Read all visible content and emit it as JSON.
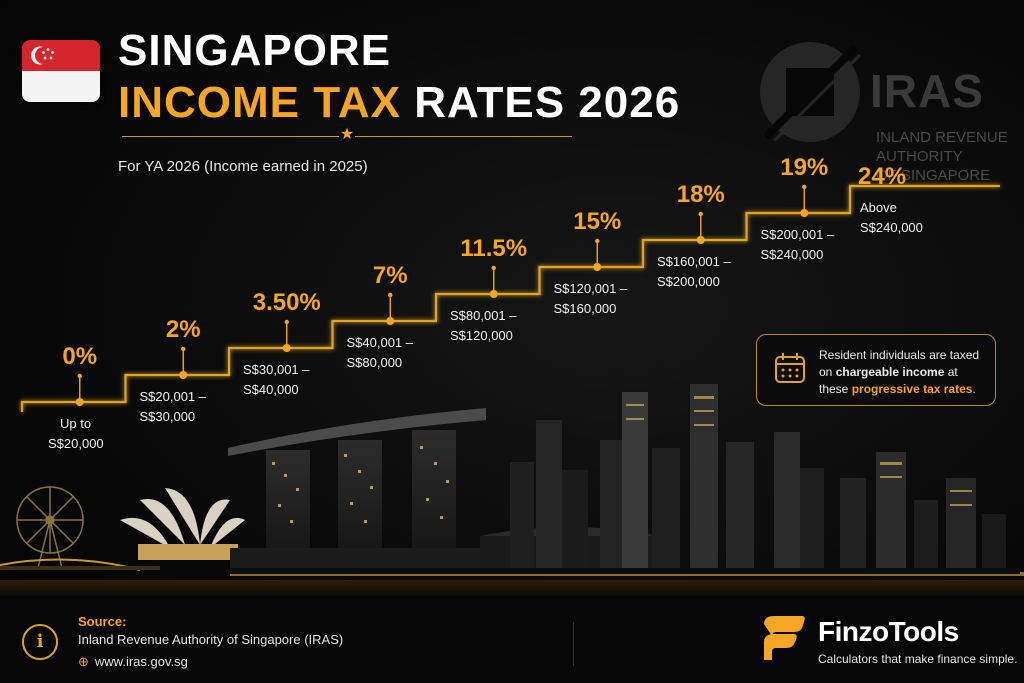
{
  "header": {
    "title_line1": "SINGAPORE",
    "title_line2_accent": "INCOME TAX",
    "title_line2_rest": "RATES 2026",
    "subtitle": "For YA 2026 (Income earned in 2025)"
  },
  "iras": {
    "name": "IRAS",
    "line1": "INLAND REVENUE",
    "line2": "AUTHORITY",
    "line3": "OF SINGAPORE"
  },
  "chart_data": {
    "type": "bar",
    "categories": [
      "Up to S$20,000",
      "S$20,001 – S$30,000",
      "S$30,001 – S$40,000",
      "S$40,001 – S$80,000",
      "S$80,001 – S$120,000",
      "S$120,001 – S$160,000",
      "S$160,001 – S$200,000",
      "S$200,001 – S$240,000",
      "Above S$240,000"
    ],
    "category_lines": [
      [
        "Up to",
        "S$20,000"
      ],
      [
        "S$20,001 –",
        "S$30,000"
      ],
      [
        "S$30,001 –",
        "S$40,000"
      ],
      [
        "S$40,001 –",
        "S$80,000"
      ],
      [
        "S$80,001 –",
        "S$120,000"
      ],
      [
        "S$120,001 –",
        "S$160,000"
      ],
      [
        "S$160,001 –",
        "S$200,000"
      ],
      [
        "S$200,001 –",
        "S$240,000"
      ],
      [
        "Above",
        "S$240,000"
      ]
    ],
    "values": [
      0,
      2,
      3.5,
      7,
      11.5,
      15,
      18,
      19,
      24
    ],
    "value_labels": [
      "0%",
      "2%",
      "3.50%",
      "7%",
      "11.5%",
      "15%",
      "18%",
      "19%",
      "24%"
    ],
    "title": "",
    "style": "staircase",
    "colors": {
      "accent": "#f5a623",
      "line": "#e0a528"
    }
  },
  "info": {
    "text_before": "Resident individuals are taxed on ",
    "text_bold": "chargeable income",
    "text_mid": " at these ",
    "text_highlight": "progressive tax rates",
    "text_end": "."
  },
  "footer": {
    "source_label": "Source:",
    "source_name": "Inland Revenue Authority of Singapore (IRAS)",
    "source_url": "www.iras.gov.sg",
    "brand_name": "FinzoTools",
    "brand_tagline": "Calculators that make finance simple."
  },
  "colors": {
    "accent": "#f5a623",
    "background": "#050505",
    "flag_red": "#d6262d",
    "flag_white": "#f4f4f4"
  }
}
